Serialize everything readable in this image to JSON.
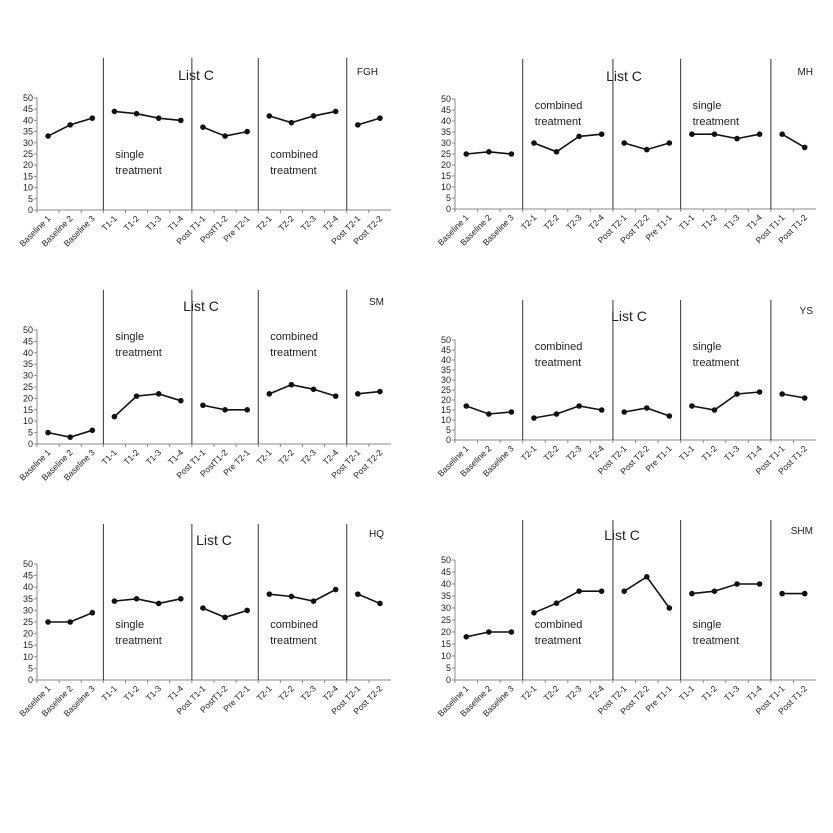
{
  "chart_data": [
    {
      "type": "line",
      "title": "List C",
      "subject": "FGH",
      "categories": [
        "Baseline 1",
        "Baseline 2",
        "Baseline 3",
        "T1-1",
        "T1-2",
        "T1-3",
        "T1-4",
        "Post T1-1",
        "PostT1-2",
        "Pre T2-1",
        "T2-1",
        "T2-2",
        "T2-3",
        "T2-4",
        "Post T2-1",
        "Post T2-2"
      ],
      "segments": [
        {
          "x": [
            "Baseline 1",
            "Baseline 2",
            "Baseline 3"
          ],
          "y": [
            33,
            38,
            41
          ]
        },
        {
          "x": [
            "T1-1",
            "T1-2",
            "T1-3",
            "T1-4"
          ],
          "y": [
            44,
            43,
            41,
            40
          ]
        },
        {
          "x": [
            "Post T1-1",
            "PostT1-2",
            "Pre T2-1"
          ],
          "y": [
            37,
            33,
            35
          ]
        },
        {
          "x": [
            "T2-1",
            "T2-2",
            "T2-3",
            "T2-4"
          ],
          "y": [
            42,
            39,
            42,
            44
          ]
        },
        {
          "x": [
            "Post T2-1",
            "Post T2-2"
          ],
          "y": [
            38,
            41
          ]
        }
      ],
      "phase_labels": [
        {
          "text": [
            "single",
            "treatment"
          ],
          "after": "T1-1",
          "position": "lower"
        },
        {
          "text": [
            "combined",
            "treatment"
          ],
          "after": "T2-1",
          "position": "lower"
        }
      ],
      "ylim": [
        0,
        50
      ],
      "yticks": [
        0,
        5,
        10,
        15,
        20,
        25,
        30,
        35,
        40,
        45,
        50
      ],
      "grid": false
    },
    {
      "type": "line",
      "title": "List C",
      "subject": "MH",
      "categories": [
        "Baseline 1",
        "Baseline 2",
        "Baseline 3",
        "T2-1",
        "T2-2",
        "T2-3",
        "T2-4",
        "Post T2-1",
        "Post T2-2",
        "Pre T1-1",
        "T1-1",
        "T1-2",
        "T1-3",
        "T1-4",
        "Post T1-1",
        "Post T1-2"
      ],
      "segments": [
        {
          "x": [
            "Baseline 1",
            "Baseline 2",
            "Baseline 3"
          ],
          "y": [
            25,
            26,
            25
          ]
        },
        {
          "x": [
            "T2-1",
            "T2-2",
            "T2-3",
            "T2-4"
          ],
          "y": [
            30,
            26,
            33,
            34
          ]
        },
        {
          "x": [
            "Post T2-1",
            "Post T2-2",
            "Pre T1-1"
          ],
          "y": [
            30,
            27,
            30
          ]
        },
        {
          "x": [
            "T1-1",
            "T1-2",
            "T1-3",
            "T1-4"
          ],
          "y": [
            34,
            34,
            32,
            34
          ]
        },
        {
          "x": [
            "Post T1-1",
            "Post T1-2"
          ],
          "y": [
            34,
            28
          ]
        }
      ],
      "phase_labels": [
        {
          "text": [
            "combined",
            "treatment"
          ],
          "after": "T2-1",
          "position": "upper"
        },
        {
          "text": [
            "single",
            "treatment"
          ],
          "after": "T1-1",
          "position": "upper"
        }
      ],
      "ylim": [
        0,
        50
      ],
      "yticks": [
        0,
        5,
        10,
        15,
        20,
        25,
        30,
        35,
        40,
        45,
        50
      ],
      "grid": false
    },
    {
      "type": "line",
      "title": "List C",
      "subject": "SM",
      "categories": [
        "Baseline 1",
        "Baseline 2",
        "Baseline 3",
        "T1-1",
        "T1-2",
        "T1-3",
        "T1-4",
        "Post T1-1",
        "PostT1-2",
        "Pre T2-1",
        "T2-1",
        "T2-2",
        "T2-3",
        "T2-4",
        "Post T2-1",
        "Post T2-2"
      ],
      "segments": [
        {
          "x": [
            "Baseline 1",
            "Baseline 2",
            "Baseline 3"
          ],
          "y": [
            5,
            3,
            6
          ]
        },
        {
          "x": [
            "T1-1",
            "T1-2",
            "T1-3",
            "T1-4"
          ],
          "y": [
            12,
            21,
            22,
            19
          ]
        },
        {
          "x": [
            "Post T1-1",
            "PostT1-2",
            "Pre T2-1"
          ],
          "y": [
            17,
            15,
            15
          ]
        },
        {
          "x": [
            "T2-1",
            "T2-2",
            "T2-3",
            "T2-4"
          ],
          "y": [
            22,
            26,
            24,
            21
          ]
        },
        {
          "x": [
            "Post T2-1",
            "Post T2-2"
          ],
          "y": [
            22,
            23
          ]
        }
      ],
      "phase_labels": [
        {
          "text": [
            "single",
            "treatment"
          ],
          "after": "T1-1",
          "position": "upper"
        },
        {
          "text": [
            "combined",
            "treatment"
          ],
          "after": "T2-1",
          "position": "upper"
        }
      ],
      "ylim": [
        0,
        50
      ],
      "yticks": [
        0,
        5,
        10,
        15,
        20,
        25,
        30,
        35,
        40,
        45,
        50
      ],
      "grid": false
    },
    {
      "type": "line",
      "title": "List C",
      "subject": "YS",
      "categories": [
        "Baseline 1",
        "Baseline 2",
        "Baseline 3",
        "T2-1",
        "T2-2",
        "T2-3",
        "T2-4",
        "Post T2-1",
        "Post T2-2",
        "Pre T1-1",
        "T1-1",
        "T1-2",
        "T1-3",
        "T1-4",
        "Post T1-1",
        "Post T1-2"
      ],
      "segments": [
        {
          "x": [
            "Baseline 1",
            "Baseline 2",
            "Baseline 3"
          ],
          "y": [
            17,
            13,
            14
          ]
        },
        {
          "x": [
            "T2-1",
            "T2-2",
            "T2-3",
            "T2-4"
          ],
          "y": [
            11,
            13,
            17,
            15
          ]
        },
        {
          "x": [
            "Post T2-1",
            "Post T2-2",
            "Pre T1-1"
          ],
          "y": [
            14,
            16,
            12
          ]
        },
        {
          "x": [
            "T1-1",
            "T1-2",
            "T1-3",
            "T1-4"
          ],
          "y": [
            17,
            15,
            23,
            24
          ]
        },
        {
          "x": [
            "Post T1-1",
            "Post T1-2"
          ],
          "y": [
            23,
            21
          ]
        }
      ],
      "phase_labels": [
        {
          "text": [
            "combined",
            "treatment"
          ],
          "after": "T2-1",
          "position": "upper"
        },
        {
          "text": [
            "single",
            "treatment"
          ],
          "after": "T1-1",
          "position": "upper"
        }
      ],
      "ylim": [
        0,
        50
      ],
      "yticks": [
        0,
        5,
        10,
        15,
        20,
        25,
        30,
        35,
        40,
        45,
        50
      ],
      "grid": false
    },
    {
      "type": "line",
      "title": "List C",
      "subject": "HQ",
      "categories": [
        "Baseline 1",
        "Baseline 2",
        "Baseline 3",
        "T1-1",
        "T1-2",
        "T1-3",
        "T1-4",
        "Post T1-1",
        "PostT1-2",
        "Pre T2-1",
        "T2-1",
        "T2-2",
        "T2-3",
        "T2-4",
        "Post T2-1",
        "Post T2-2"
      ],
      "segments": [
        {
          "x": [
            "Baseline 1",
            "Baseline 2",
            "Baseline 3"
          ],
          "y": [
            25,
            25,
            29
          ]
        },
        {
          "x": [
            "T1-1",
            "T1-2",
            "T1-3",
            "T1-4"
          ],
          "y": [
            34,
            35,
            33,
            35
          ]
        },
        {
          "x": [
            "Post T1-1",
            "PostT1-2",
            "Pre T2-1"
          ],
          "y": [
            31,
            27,
            30
          ]
        },
        {
          "x": [
            "T2-1",
            "T2-2",
            "T2-3",
            "T2-4"
          ],
          "y": [
            37,
            36,
            34,
            39
          ]
        },
        {
          "x": [
            "Post T2-1",
            "Post T2-2"
          ],
          "y": [
            37,
            33
          ]
        }
      ],
      "phase_labels": [
        {
          "text": [
            "single",
            "treatment"
          ],
          "after": "T1-1",
          "position": "lower"
        },
        {
          "text": [
            "combined",
            "treatment"
          ],
          "after": "T2-1",
          "position": "lower"
        }
      ],
      "ylim": [
        0,
        50
      ],
      "yticks": [
        0,
        5,
        10,
        15,
        20,
        25,
        30,
        35,
        40,
        45,
        50
      ],
      "grid": false
    },
    {
      "type": "line",
      "title": "List C",
      "subject": "SHM",
      "categories": [
        "Baseline 1",
        "Baseline 2",
        "Baseline 3",
        "T2-1",
        "T2-2",
        "T2-3",
        "T2-4",
        "Post T2-1",
        "Post T2-2",
        "Pre T1-1",
        "T1-1",
        "T1-2",
        "T1-3",
        "T1-4",
        "Post T1-1",
        "Post T1-2"
      ],
      "segments": [
        {
          "x": [
            "Baseline 1",
            "Baseline 2",
            "Baseline 3"
          ],
          "y": [
            18,
            20,
            20
          ]
        },
        {
          "x": [
            "T2-1",
            "T2-2",
            "T2-3",
            "T2-4"
          ],
          "y": [
            28,
            32,
            37,
            37
          ]
        },
        {
          "x": [
            "Post T2-1",
            "Post T2-2",
            "Pre T1-1"
          ],
          "y": [
            37,
            43,
            30
          ]
        },
        {
          "x": [
            "T1-1",
            "T1-2",
            "T1-3",
            "T1-4"
          ],
          "y": [
            36,
            37,
            40,
            40
          ]
        },
        {
          "x": [
            "Post T1-1",
            "Post T1-2"
          ],
          "y": [
            36,
            36
          ]
        }
      ],
      "phase_labels": [
        {
          "text": [
            "combined",
            "treatment"
          ],
          "after": "T2-1",
          "position": "lower"
        },
        {
          "text": [
            "single",
            "treatment"
          ],
          "after": "T1-1",
          "position": "lower"
        }
      ],
      "ylim": [
        0,
        50
      ],
      "yticks": [
        0,
        5,
        10,
        15,
        20,
        25,
        30,
        35,
        40,
        45,
        50
      ],
      "grid": false
    }
  ]
}
